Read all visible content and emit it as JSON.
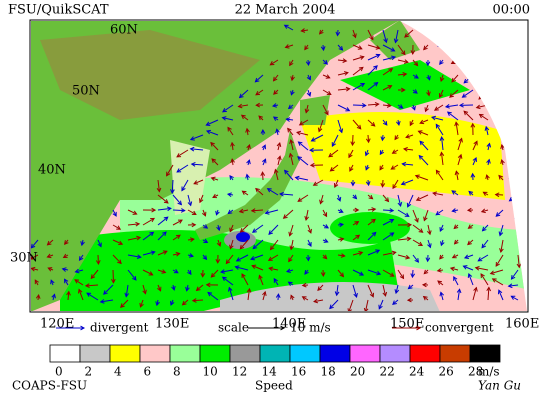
{
  "header": {
    "source": "FSU/QuikSCAT",
    "date": "22 March 2004",
    "time": "00:00"
  },
  "map": {
    "lat_labels": [
      "60N",
      "50N",
      "40N",
      "30N"
    ],
    "lon_labels": [
      "120E",
      "130E",
      "140E",
      "150E",
      "160E"
    ]
  },
  "legend": {
    "divergent": "divergent",
    "scale": "scale",
    "scale_value": "10 m/s",
    "convergent": "convergent",
    "divergent_color": "#0000cc",
    "convergent_color": "#990000"
  },
  "colorbar": {
    "levels": [
      0,
      2,
      4,
      6,
      8,
      10,
      12,
      14,
      16,
      18,
      20,
      22,
      24,
      26,
      28
    ],
    "unit": "m/s",
    "title": "Speed",
    "colors": [
      "#ffffff",
      "#c8c8c8",
      "#ffff00",
      "#ffc8c8",
      "#99ff99",
      "#00ee00",
      "#999999",
      "#00b4b4",
      "#00c8ff",
      "#0000e6",
      "#ff66ff",
      "#b48cff",
      "#ff0000",
      "#c83c00",
      "#000000"
    ]
  },
  "footer": {
    "credit": "COAPS-FSU",
    "author": "Yan Gu"
  }
}
